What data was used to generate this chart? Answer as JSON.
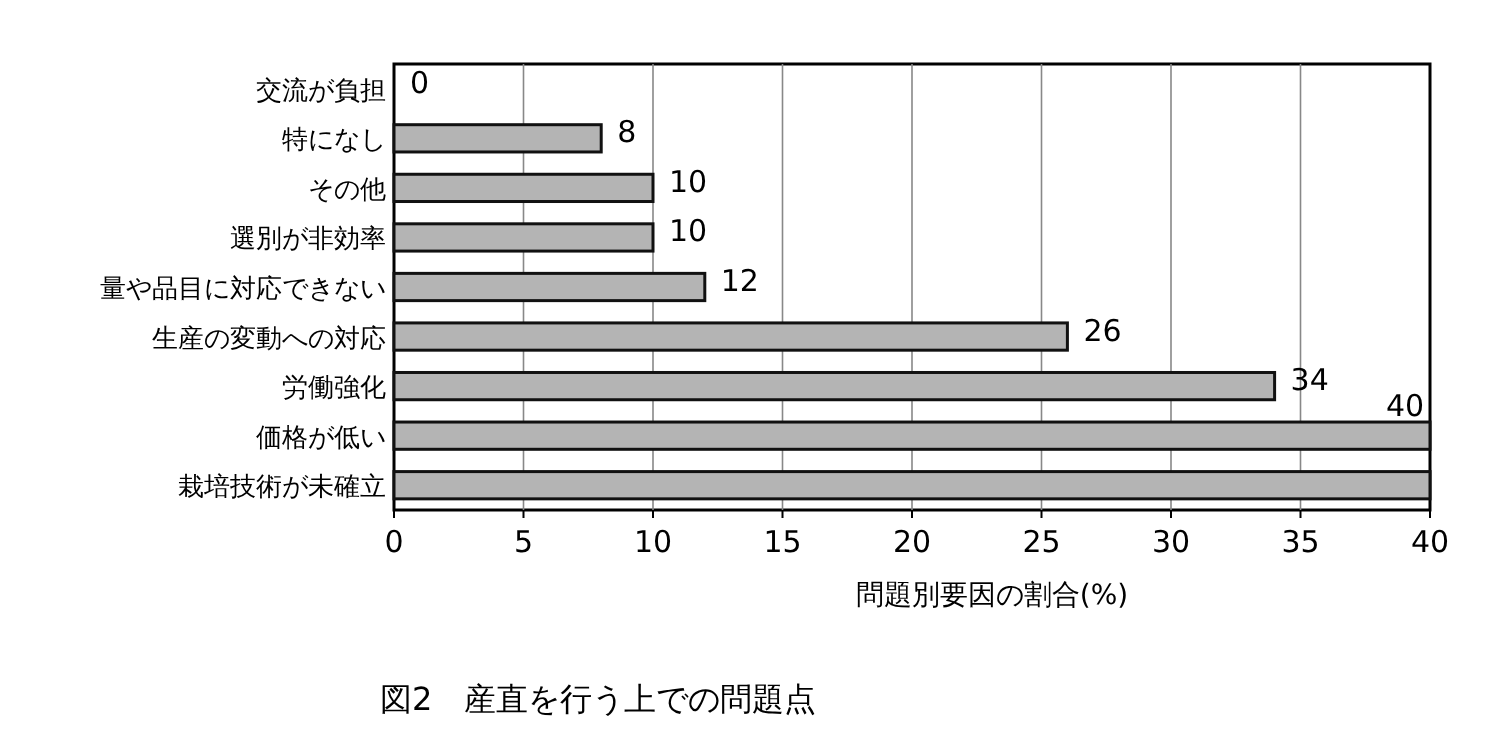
{
  "chart_data": {
    "type": "bar",
    "orientation": "horizontal",
    "title": "図2　産直を行う上での問題点",
    "xlabel": "問題別要因の割合(%)",
    "categories": [
      "交流が負担",
      "特になし",
      "その他",
      "選別が非効率",
      "量や品目に対応できない",
      "生産の変動への対応",
      "労働強化",
      "価格が低い",
      "栽培技術が未確立"
    ],
    "values": [
      0,
      8,
      10,
      10,
      12,
      26,
      34,
      40,
      40
    ],
    "value_labels": [
      "0",
      "8",
      "10",
      "10",
      "12",
      "26",
      "34",
      "40",
      null
    ],
    "color": "#b4b4b4",
    "xlim": [
      0,
      40
    ],
    "xticks": [
      0,
      5,
      10,
      15,
      20,
      25,
      30,
      35,
      40
    ],
    "grid": "x"
  }
}
